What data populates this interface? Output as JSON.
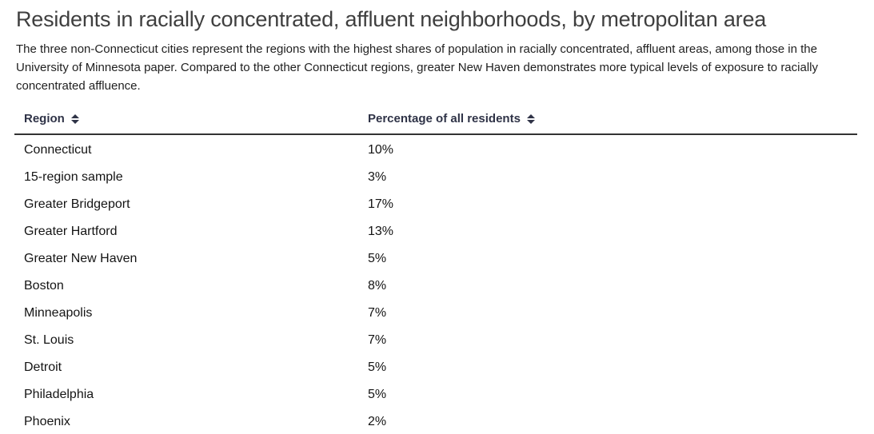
{
  "header": {
    "title": "Residents in racially concentrated, affluent neighborhoods, by metropolitan area",
    "description": "The three non-Connecticut cities represent the regions with the highest shares of population in racially concentrated, affluent areas, among those in the University of Minnesota paper. Compared to the other Connecticut regions, greater New Haven demonstrates more typical levels of exposure to racially concentrated affluence."
  },
  "table": {
    "columns": [
      {
        "label": "Region",
        "sortable": true
      },
      {
        "label": "Percentage of all residents",
        "sortable": true
      }
    ],
    "rows": [
      {
        "region": "Connecticut",
        "percentage": "10%"
      },
      {
        "region": "15-region sample",
        "percentage": "3%"
      },
      {
        "region": "Greater Bridgeport",
        "percentage": "17%"
      },
      {
        "region": "Greater Hartford",
        "percentage": "13%"
      },
      {
        "region": "Greater New Haven",
        "percentage": "5%"
      },
      {
        "region": "Boston",
        "percentage": "8%"
      },
      {
        "region": "Minneapolis",
        "percentage": "7%"
      },
      {
        "region": "St. Louis",
        "percentage": "7%"
      },
      {
        "region": "Detroit",
        "percentage": "5%"
      },
      {
        "region": "Philadelphia",
        "percentage": "5%"
      },
      {
        "region": "Phoenix",
        "percentage": "2%"
      }
    ]
  },
  "colors": {
    "title_text": "#3f3f3f",
    "body_text": "#1f1f1f",
    "header_text": "#2f3347",
    "divider": "#333333",
    "background": "#ffffff"
  },
  "chart_data": {
    "type": "table",
    "title": "Residents in racially concentrated, affluent neighborhoods, by metropolitan area",
    "subtitle": "The three non-Connecticut cities represent the regions with the highest shares of population in racially concentrated, affluent areas, among those in the University of Minnesota paper. Compared to the other Connecticut regions, greater New Haven demonstrates more typical levels of exposure to racially concentrated affluence.",
    "columns": [
      "Region",
      "Percentage of all residents"
    ],
    "categories": [
      "Connecticut",
      "15-region sample",
      "Greater Bridgeport",
      "Greater Hartford",
      "Greater New Haven",
      "Boston",
      "Minneapolis",
      "St. Louis",
      "Detroit",
      "Philadelphia",
      "Phoenix"
    ],
    "values_percent": [
      10,
      3,
      17,
      13,
      5,
      8,
      7,
      7,
      5,
      5,
      2
    ],
    "layout": {
      "sortable_columns": true,
      "row_separators": false,
      "header_divider": true
    }
  }
}
